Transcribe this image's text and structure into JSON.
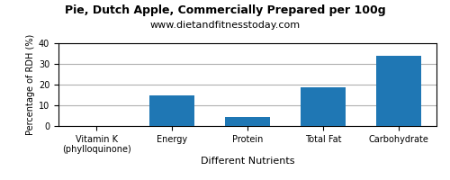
{
  "chart_data": {
    "type": "bar",
    "title": "Pie, Dutch Apple, Commercially Prepared per 100g",
    "subtitle": "www.dietandfitnesstoday.com",
    "xlabel": "Different Nutrients",
    "ylabel": "Percentage of RDH (%)",
    "categories": [
      "Vitamin K (phylloquinone)",
      "Energy",
      "Protein",
      "Total Fat",
      "Carbohydrate"
    ],
    "values": [
      0,
      15,
      4.5,
      18.5,
      34
    ],
    "ylim": [
      0,
      40
    ],
    "yticks": [
      0,
      10,
      20,
      30,
      40
    ],
    "grid": true
  }
}
